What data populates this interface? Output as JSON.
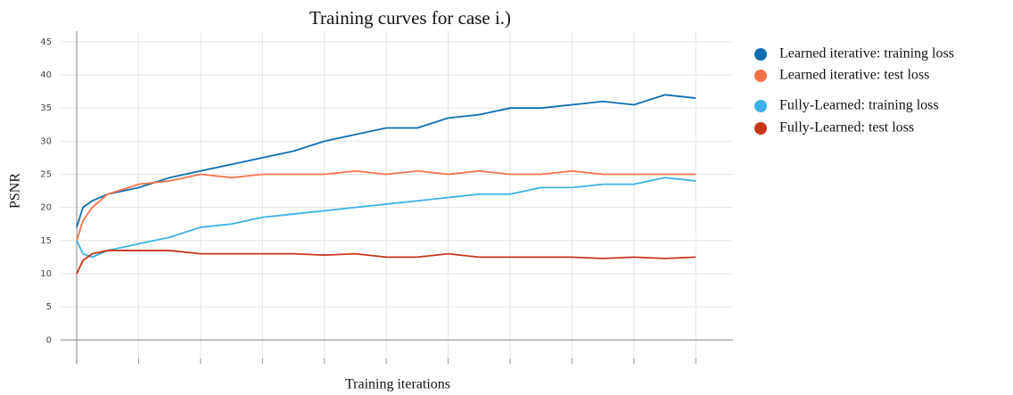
{
  "chart_data": {
    "type": "line",
    "title": "Training curves for case i.)",
    "xlabel": "Training iterations",
    "ylabel": "PSNR",
    "x": [
      0,
      0.1,
      0.25,
      0.5,
      1,
      1.5,
      2,
      2.5,
      3,
      3.5,
      4,
      4.5,
      5,
      5.5,
      6,
      6.5,
      7,
      7.5,
      8,
      8.5,
      9,
      9.5,
      10
    ],
    "series": [
      {
        "name": "Learned iterative: training loss",
        "color": "#0e6fb0",
        "values": [
          17,
          20,
          21,
          22,
          23,
          24.5,
          25.5,
          26.5,
          27.5,
          28.5,
          30,
          31,
          32,
          32,
          33.5,
          34,
          35,
          35,
          35.5,
          36,
          35.5,
          37,
          36.5
        ]
      },
      {
        "name": "Learned iterative: test loss",
        "color": "#f4734a",
        "values": [
          15,
          18,
          20,
          22,
          23.5,
          24,
          25,
          24.5,
          25,
          25,
          25,
          25.5,
          25,
          25.5,
          25,
          25.5,
          25,
          25,
          25.5,
          25,
          25,
          25,
          25
        ]
      },
      {
        "name": "Fully-Learned: training loss",
        "color": "#3cb1e8",
        "values": [
          15,
          13,
          12.5,
          13.5,
          14.5,
          15.5,
          17,
          17.5,
          18.5,
          19,
          19.5,
          20,
          20.5,
          21,
          21.5,
          22,
          22,
          23,
          23,
          23.5,
          23.5,
          24.5,
          24
        ]
      },
      {
        "name": "Fully-Learned: test loss",
        "color": "#c8361a",
        "values": [
          10,
          12,
          13,
          13.5,
          13.5,
          13.5,
          13,
          13,
          13,
          13,
          12.8,
          13,
          12.5,
          12.5,
          13,
          12.5,
          12.5,
          12.5,
          12.5,
          12.3,
          12.5,
          12.3,
          12.5
        ]
      }
    ],
    "xlim": [
      -0.26,
      10.6
    ],
    "xticks": [
      0,
      1,
      2,
      3,
      4,
      5,
      6,
      7,
      8,
      9,
      10
    ],
    "ylim": [
      -3.6,
      46.6
    ],
    "yticks": [
      0,
      5,
      10,
      15,
      20,
      25,
      30,
      35,
      40,
      45
    ],
    "grid": true
  }
}
